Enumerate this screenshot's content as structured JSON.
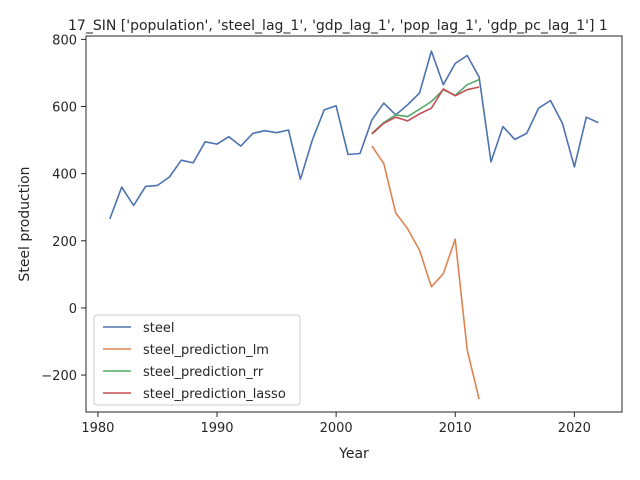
{
  "chart_data": {
    "type": "line",
    "title": "17_SIN ['population', 'steel_lag_1', 'gdp_lag_1', 'pop_lag_1', 'gdp_pc_lag_1'] 1",
    "xlabel": "Year",
    "ylabel": "Steel production",
    "xlim": [
      1979,
      2024
    ],
    "ylim": [
      -310,
      810
    ],
    "xticks": [
      1980,
      1990,
      2000,
      2010,
      2020
    ],
    "yticks": [
      -200,
      0,
      200,
      400,
      600,
      800
    ],
    "yticklabels": [
      "−200",
      "0",
      "200",
      "400",
      "600",
      "800"
    ],
    "grid": false,
    "legend_position": "lower-left",
    "series": [
      {
        "name": "steel",
        "color": "#4c72b0",
        "x": [
          1981,
          1982,
          1983,
          1984,
          1985,
          1986,
          1987,
          1988,
          1989,
          1990,
          1991,
          1992,
          1993,
          1994,
          1995,
          1996,
          1997,
          1998,
          1999,
          2000,
          2001,
          2002,
          2003,
          2004,
          2005,
          2006,
          2007,
          2008,
          2009,
          2010,
          2011,
          2012,
          2013,
          2014,
          2015,
          2016,
          2017,
          2018,
          2019,
          2020,
          2021,
          2022
        ],
        "y": [
          265,
          360,
          305,
          362,
          365,
          390,
          440,
          432,
          495,
          488,
          510,
          482,
          520,
          528,
          522,
          530,
          383,
          500,
          590,
          602,
          457,
          460,
          560,
          610,
          575,
          605,
          640,
          765,
          665,
          728,
          752,
          688,
          435,
          540,
          502,
          520,
          595,
          618,
          550,
          420,
          568,
          552
        ]
      },
      {
        "name": "steel_prediction_lm",
        "color": "#dd8452",
        "x": [
          2003,
          2004,
          2005,
          2006,
          2007,
          2008,
          2009,
          2010,
          2011,
          2012
        ],
        "y": [
          482,
          430,
          283,
          236,
          172,
          63,
          102,
          205,
          -125,
          -272
        ]
      },
      {
        "name": "steel_prediction_rr",
        "color": "#55a868",
        "x": [
          2003,
          2004,
          2005,
          2006,
          2007,
          2008,
          2009,
          2010,
          2011,
          2012
        ],
        "y": [
          520,
          552,
          575,
          570,
          592,
          615,
          650,
          633,
          665,
          680
        ]
      },
      {
        "name": "steel_prediction_lasso",
        "color": "#c44e52",
        "x": [
          2003,
          2004,
          2005,
          2006,
          2007,
          2008,
          2009,
          2010,
          2011,
          2012
        ],
        "y": [
          518,
          550,
          568,
          557,
          578,
          595,
          652,
          632,
          650,
          658
        ]
      }
    ]
  }
}
